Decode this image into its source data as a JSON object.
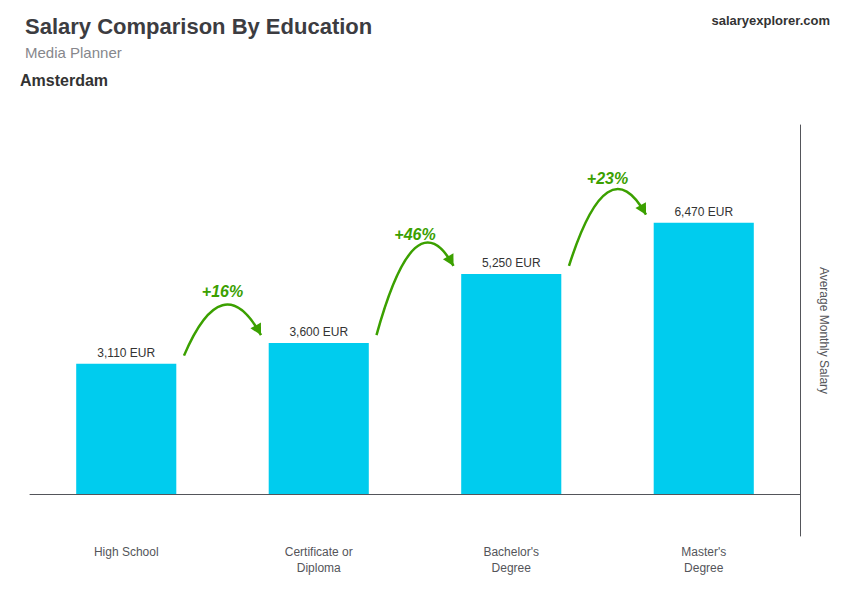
{
  "chart_data": {
    "type": "bar",
    "title": "Salary Comparison By Education",
    "subtitle": "Media Planner",
    "annotations": [
      "Amsterdam",
      "salaryexplorer.com"
    ],
    "ylabel": "Average Monthly Salary",
    "categories": [
      "High School",
      "Certificate or\nDiploma",
      "Bachelor's\nDegree",
      "Master's\nDegree"
    ],
    "values": [
      3110,
      3600,
      5250,
      6470
    ],
    "value_labels": [
      "3,110 EUR",
      "3,600 EUR",
      "5,250 EUR",
      "6,470 EUR"
    ],
    "change_labels": [
      "+16%",
      "+46%",
      "+23%"
    ],
    "color": "#00ccee",
    "ylim": [
      -1000,
      8800
    ],
    "yticks": [],
    "grid": false,
    "data_labels": true,
    "tick_labels": "x"
  }
}
